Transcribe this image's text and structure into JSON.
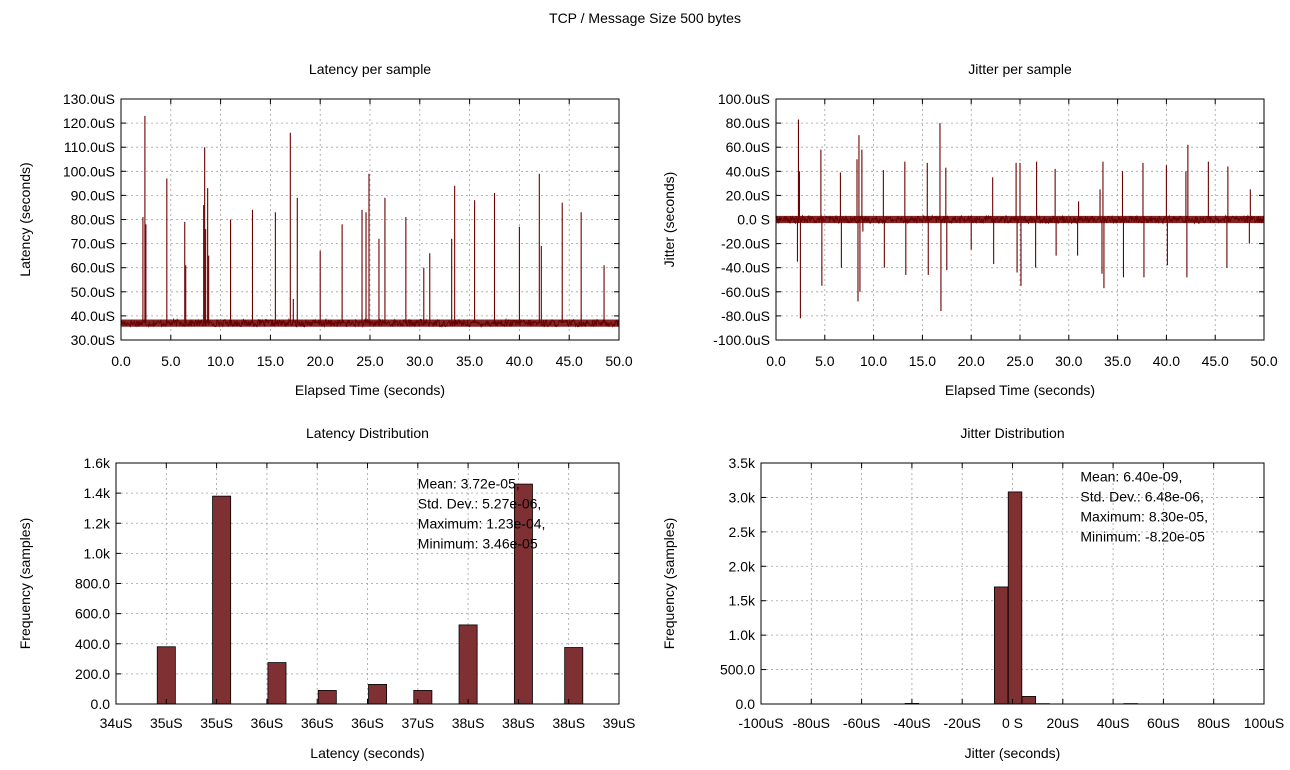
{
  "figure": {
    "title": "TCP / Message Size 500 bytes"
  },
  "colors": {
    "series": "#6b0000",
    "bar_fill": "#7f3033",
    "bar_stroke": "#000000",
    "grid": "#a0a0a0"
  },
  "chart_data": [
    {
      "id": "latency_per_sample",
      "type": "line",
      "title": "Latency per sample",
      "xlabel": "Elapsed Time (seconds)",
      "ylabel": "Latency (seconds)",
      "xlim": [
        0,
        50
      ],
      "ylim": [
        30,
        130
      ],
      "xticks": [
        0,
        5,
        10,
        15,
        20,
        25,
        30,
        35,
        40,
        45,
        50
      ],
      "xtick_labels": [
        "0.0",
        "5.0",
        "10.0",
        "15.0",
        "20.0",
        "25.0",
        "30.0",
        "35.0",
        "40.0",
        "45.0",
        "50.0"
      ],
      "yticks": [
        30,
        40,
        50,
        60,
        70,
        80,
        90,
        100,
        110,
        120,
        130
      ],
      "ytick_labels": [
        "30.0uS",
        "40.0uS",
        "50.0uS",
        "60.0uS",
        "70.0uS",
        "80.0uS",
        "90.0uS",
        "100.0uS",
        "110.0uS",
        "120.0uS",
        "130.0uS"
      ],
      "grid": true,
      "baseline": {
        "value": 37,
        "noise_low": 35.5,
        "noise_high": 38.5
      },
      "spikes": [
        [
          2.2,
          81
        ],
        [
          2.4,
          123
        ],
        [
          2.5,
          78
        ],
        [
          4.6,
          97
        ],
        [
          6.4,
          79
        ],
        [
          6.5,
          61
        ],
        [
          8.3,
          86
        ],
        [
          8.4,
          110
        ],
        [
          8.5,
          76
        ],
        [
          8.7,
          93
        ],
        [
          8.8,
          65
        ],
        [
          11.0,
          80
        ],
        [
          13.2,
          84
        ],
        [
          15.5,
          83
        ],
        [
          17.0,
          116
        ],
        [
          17.3,
          47
        ],
        [
          17.7,
          89
        ],
        [
          20.0,
          67
        ],
        [
          22.2,
          78
        ],
        [
          24.2,
          84
        ],
        [
          24.6,
          83
        ],
        [
          24.9,
          99
        ],
        [
          25.9,
          72
        ],
        [
          26.5,
          89
        ],
        [
          28.6,
          81
        ],
        [
          30.4,
          60
        ],
        [
          31.0,
          66
        ],
        [
          33.2,
          72
        ],
        [
          33.5,
          94
        ],
        [
          35.5,
          88
        ],
        [
          37.5,
          91
        ],
        [
          40.0,
          77
        ],
        [
          42.0,
          99
        ],
        [
          42.2,
          69
        ],
        [
          44.3,
          87
        ],
        [
          46.2,
          83
        ],
        [
          48.5,
          61
        ]
      ]
    },
    {
      "id": "jitter_per_sample",
      "type": "line",
      "title": "Jitter per sample",
      "xlabel": "Elapsed Time (seconds)",
      "ylabel": "Jitter (seconds)",
      "xlim": [
        0,
        50
      ],
      "ylim": [
        -100,
        100
      ],
      "xticks": [
        0,
        5,
        10,
        15,
        20,
        25,
        30,
        35,
        40,
        45,
        50
      ],
      "xtick_labels": [
        "0.0",
        "5.0",
        "10.0",
        "15.0",
        "20.0",
        "25.0",
        "30.0",
        "35.0",
        "40.0",
        "45.0",
        "50.0"
      ],
      "yticks": [
        -100,
        -80,
        -60,
        -40,
        -20,
        0,
        20,
        40,
        60,
        80,
        100
      ],
      "ytick_labels": [
        "-100.0uS",
        "-80.0uS",
        "-60.0uS",
        "-40.0uS",
        "-20.0uS",
        "0.0 S",
        "20.0uS",
        "40.0uS",
        "60.0uS",
        "80.0uS",
        "100.0uS"
      ],
      "grid": true,
      "baseline": {
        "value": 0,
        "noise_low": -3,
        "noise_high": 3
      },
      "spikes": [
        [
          2.2,
          -35
        ],
        [
          2.3,
          83
        ],
        [
          2.4,
          40
        ],
        [
          2.5,
          -82
        ],
        [
          4.6,
          58
        ],
        [
          4.7,
          -55
        ],
        [
          6.6,
          39
        ],
        [
          6.7,
          -40
        ],
        [
          8.3,
          50
        ],
        [
          8.4,
          -68
        ],
        [
          8.5,
          70
        ],
        [
          8.6,
          -60
        ],
        [
          8.8,
          58
        ],
        [
          8.9,
          -10
        ],
        [
          11.0,
          41
        ],
        [
          11.1,
          -40
        ],
        [
          13.2,
          48
        ],
        [
          13.3,
          -46
        ],
        [
          15.5,
          47
        ],
        [
          15.6,
          -46
        ],
        [
          16.8,
          80
        ],
        [
          16.9,
          -76
        ],
        [
          17.4,
          43
        ],
        [
          17.5,
          -42
        ],
        [
          20.0,
          -25
        ],
        [
          22.2,
          35
        ],
        [
          22.3,
          -37
        ],
        [
          24.6,
          47
        ],
        [
          24.7,
          -44
        ],
        [
          25.0,
          47
        ],
        [
          25.1,
          -55
        ],
        [
          26.6,
          -40
        ],
        [
          26.7,
          48
        ],
        [
          28.6,
          42
        ],
        [
          28.7,
          -30
        ],
        [
          30.9,
          -30
        ],
        [
          31.0,
          15
        ],
        [
          33.2,
          25
        ],
        [
          33.4,
          -45
        ],
        [
          33.5,
          48
        ],
        [
          33.6,
          -57
        ],
        [
          35.5,
          40
        ],
        [
          35.6,
          -48
        ],
        [
          37.6,
          47
        ],
        [
          37.7,
          -48
        ],
        [
          40.0,
          45
        ],
        [
          40.1,
          -38
        ],
        [
          42.0,
          40
        ],
        [
          42.1,
          -48
        ],
        [
          42.2,
          62
        ],
        [
          44.3,
          48
        ],
        [
          46.2,
          -40
        ],
        [
          46.3,
          44
        ],
        [
          48.5,
          -20
        ],
        [
          48.6,
          25
        ]
      ]
    },
    {
      "id": "latency_distribution",
      "type": "bar",
      "title": "Latency Distribution",
      "xlabel": "Latency (seconds)",
      "ylabel": "Frequency (samples)",
      "xlim": [
        34.0,
        39.0
      ],
      "ylim": [
        0,
        1600
      ],
      "xticks": [
        34.0,
        34.5,
        35.0,
        35.5,
        36.0,
        36.5,
        37.0,
        37.5,
        38.0,
        38.5,
        39.0
      ],
      "xtick_labels": [
        "34uS",
        "35uS",
        "35uS",
        "36uS",
        "36uS",
        "36uS",
        "37uS",
        "38uS",
        "38uS",
        "38uS",
        "39uS"
      ],
      "yticks": [
        0,
        200,
        400,
        600,
        800,
        1000,
        1200,
        1400,
        1600
      ],
      "ytick_labels": [
        "0.0",
        "200.0",
        "400.0",
        "600.0",
        "800.0",
        "1.0k",
        "1.2k",
        "1.4k",
        "1.6k"
      ],
      "grid": true,
      "bar_width": 0.18,
      "bars": [
        [
          34.5,
          380
        ],
        [
          35.05,
          1380
        ],
        [
          35.6,
          275
        ],
        [
          36.1,
          90
        ],
        [
          36.6,
          130
        ],
        [
          37.05,
          90
        ],
        [
          37.5,
          525
        ],
        [
          38.05,
          1460
        ],
        [
          38.55,
          375
        ]
      ],
      "annotations": [
        "Mean: 3.72e-05,",
        "Std. Dev.: 5.27e-06,",
        "Maximum: 1.23e-04,",
        "Minimum: 3.46e-05"
      ],
      "annotation_anchor": [
        37.0,
        1430
      ]
    },
    {
      "id": "jitter_distribution",
      "type": "bar",
      "title": "Jitter Distribution",
      "xlabel": "Jitter (seconds)",
      "ylabel": "Frequency (samples)",
      "xlim": [
        -100,
        100
      ],
      "ylim": [
        0,
        3500
      ],
      "xticks": [
        -100,
        -80,
        -60,
        -40,
        -20,
        0,
        20,
        40,
        60,
        80,
        100
      ],
      "xtick_labels": [
        "-100uS",
        "-80uS",
        "-60uS",
        "-40uS",
        "-20uS",
        "0 S",
        "20uS",
        "40uS",
        "60uS",
        "80uS",
        "100uS"
      ],
      "yticks": [
        0,
        500,
        1000,
        1500,
        2000,
        2500,
        3000,
        3500
      ],
      "ytick_labels": [
        "0.0",
        "500.0",
        "1.0k",
        "1.5k",
        "2.0k",
        "2.5k",
        "3.0k",
        "3.5k"
      ],
      "grid": true,
      "bar_width": 5.4,
      "bars": [
        [
          -40,
          8
        ],
        [
          -4.5,
          1700
        ],
        [
          1,
          3080
        ],
        [
          6.5,
          110
        ],
        [
          12,
          5
        ],
        [
          47,
          6
        ]
      ],
      "annotations": [
        "Mean: 6.40e-09,",
        "Std. Dev.: 6.48e-06,",
        "Maximum: 8.30e-05,",
        "Minimum: -8.20e-05"
      ],
      "annotation_anchor": [
        27,
        3230
      ]
    }
  ]
}
